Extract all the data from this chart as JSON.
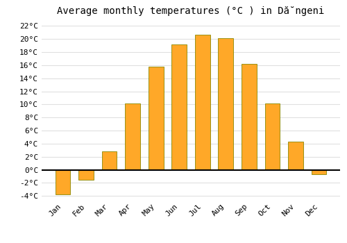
{
  "title": "Average monthly temperatures (°C ) in Dă̆ngeni",
  "months": [
    "Jan",
    "Feb",
    "Mar",
    "Apr",
    "May",
    "Jun",
    "Jul",
    "Aug",
    "Sep",
    "Oct",
    "Nov",
    "Dec"
  ],
  "values": [
    -3.8,
    -1.5,
    2.8,
    10.2,
    15.8,
    19.2,
    20.7,
    20.1,
    16.2,
    10.2,
    4.3,
    -0.7
  ],
  "bar_color": "#FFA828",
  "bar_edge_color": "#888800",
  "ylim": [
    -4.5,
    23
  ],
  "yticks": [
    -4,
    -2,
    0,
    2,
    4,
    6,
    8,
    10,
    12,
    14,
    16,
    18,
    20,
    22
  ],
  "ytick_labels": [
    "-4°C",
    "-2°C",
    "0°C",
    "2°C",
    "4°C",
    "6°C",
    "8°C",
    "10°C",
    "12°C",
    "14°C",
    "16°C",
    "18°C",
    "20°C",
    "22°C"
  ],
  "background_color": "#ffffff",
  "plot_bg_color": "#ffffff",
  "grid_color": "#e0e0e0",
  "title_fontsize": 10,
  "tick_fontsize": 8,
  "bar_width": 0.65
}
